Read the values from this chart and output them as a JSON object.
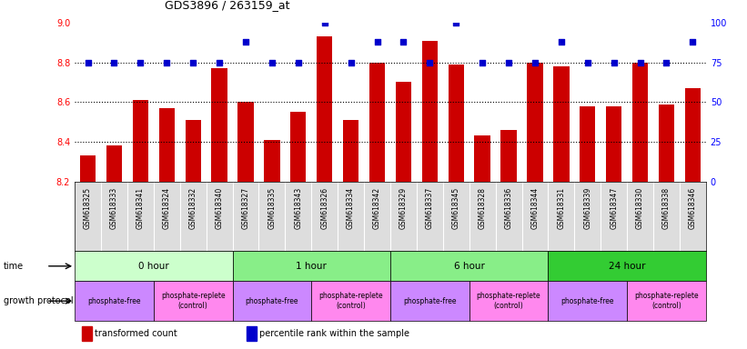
{
  "title": "GDS3896 / 263159_at",
  "samples": [
    "GSM618325",
    "GSM618333",
    "GSM618341",
    "GSM618324",
    "GSM618332",
    "GSM618340",
    "GSM618327",
    "GSM618335",
    "GSM618343",
    "GSM618326",
    "GSM618334",
    "GSM618342",
    "GSM618329",
    "GSM618337",
    "GSM618345",
    "GSM618328",
    "GSM618336",
    "GSM618344",
    "GSM618331",
    "GSM618339",
    "GSM618347",
    "GSM618330",
    "GSM618338",
    "GSM618346"
  ],
  "transformed_count": [
    8.33,
    8.38,
    8.61,
    8.57,
    8.51,
    8.77,
    8.6,
    8.41,
    8.55,
    8.93,
    8.51,
    8.8,
    8.7,
    8.91,
    8.79,
    8.43,
    8.46,
    8.8,
    8.78,
    8.58,
    8.58,
    8.8,
    8.59,
    8.67
  ],
  "percentile_rank": [
    75,
    75,
    75,
    75,
    75,
    75,
    88,
    75,
    75,
    100,
    75,
    88,
    88,
    75,
    100,
    75,
    75,
    75,
    88,
    75,
    75,
    75,
    75,
    88
  ],
  "bar_color": "#cc0000",
  "dot_color": "#0000cc",
  "ylim_left": [
    8.2,
    9.0
  ],
  "yticks_left": [
    8.2,
    8.4,
    8.6,
    8.8,
    9.0
  ],
  "ylim_right": [
    0,
    100
  ],
  "yticks_right": [
    0,
    25,
    50,
    75,
    100
  ],
  "grid_lines": [
    8.4,
    8.6,
    8.8
  ],
  "time_groups": [
    {
      "label": "0 hour",
      "start": 0,
      "end": 6,
      "color": "#ccffcc"
    },
    {
      "label": "1 hour",
      "start": 6,
      "end": 12,
      "color": "#88ee88"
    },
    {
      "label": "6 hour",
      "start": 12,
      "end": 18,
      "color": "#88ee88"
    },
    {
      "label": "24 hour",
      "start": 18,
      "end": 24,
      "color": "#33cc33"
    }
  ],
  "protocol_groups": [
    {
      "label": "phosphate-free",
      "start": 0,
      "end": 3
    },
    {
      "label": "phosphate-replete\n(control)",
      "start": 3,
      "end": 6
    },
    {
      "label": "phosphate-free",
      "start": 6,
      "end": 9
    },
    {
      "label": "phosphate-replete\n(control)",
      "start": 9,
      "end": 12
    },
    {
      "label": "phosphate-free",
      "start": 12,
      "end": 15
    },
    {
      "label": "phosphate-replete\n(control)",
      "start": 15,
      "end": 18
    },
    {
      "label": "phosphate-free",
      "start": 18,
      "end": 21
    },
    {
      "label": "phosphate-replete\n(control)",
      "start": 21,
      "end": 24
    }
  ],
  "proto_color_free": "#cc88ff",
  "proto_color_ctrl": "#ff88ee",
  "xtick_bg": "#dddddd",
  "legend_red_label": "transformed count",
  "legend_blue_label": "percentile rank within the sample",
  "time_label": "time",
  "protocol_label": "growth protocol",
  "n_samples": 24
}
